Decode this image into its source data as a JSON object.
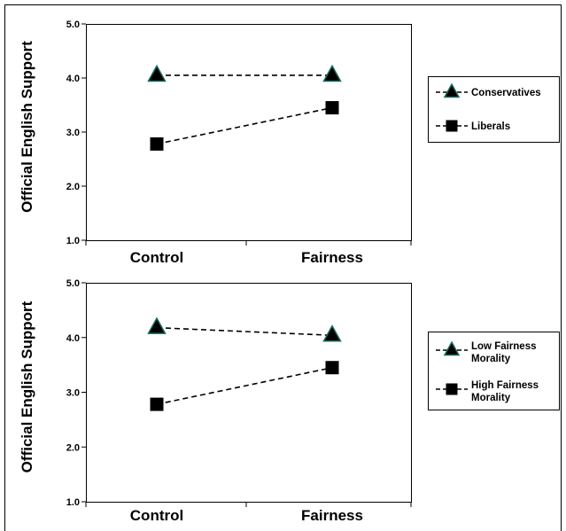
{
  "chart_data": [
    {
      "type": "line",
      "ylabel": "Official English Support",
      "xlabel": "",
      "categories": [
        "Control",
        "Fairness"
      ],
      "ylim": [
        1.0,
        5.0
      ],
      "yticks": [
        "1.0",
        "2.0",
        "3.0",
        "4.0",
        "5.0"
      ],
      "grid": false,
      "legend_position": "right",
      "series": [
        {
          "name": "Conservatives",
          "marker": "triangle",
          "values": [
            4.05,
            4.05
          ],
          "color": "#000000",
          "marker_fill": "#000000",
          "marker_outline": "#1a6b60"
        },
        {
          "name": "Liberals",
          "marker": "square",
          "values": [
            2.78,
            3.45
          ],
          "color": "#000000",
          "marker_fill": "#000000"
        }
      ]
    },
    {
      "type": "line",
      "ylabel": "Official English Support",
      "xlabel": "",
      "categories": [
        "Control",
        "Fairness"
      ],
      "ylim": [
        1.0,
        5.0
      ],
      "yticks": [
        "1.0",
        "2.0",
        "3.0",
        "4.0",
        "5.0"
      ],
      "grid": false,
      "legend_position": "right",
      "series": [
        {
          "name": "Low Fairness Morality",
          "legend_lines": [
            "Low Fairness",
            "Morality"
          ],
          "marker": "triangle",
          "values": [
            4.18,
            4.04
          ],
          "color": "#000000",
          "marker_fill": "#000000",
          "marker_outline": "#1a6b60"
        },
        {
          "name": "High Fairness Morality",
          "legend_lines": [
            "High Fairness",
            "Morality"
          ],
          "marker": "square",
          "values": [
            2.78,
            3.45
          ],
          "color": "#000000",
          "marker_fill": "#000000"
        }
      ]
    }
  ]
}
